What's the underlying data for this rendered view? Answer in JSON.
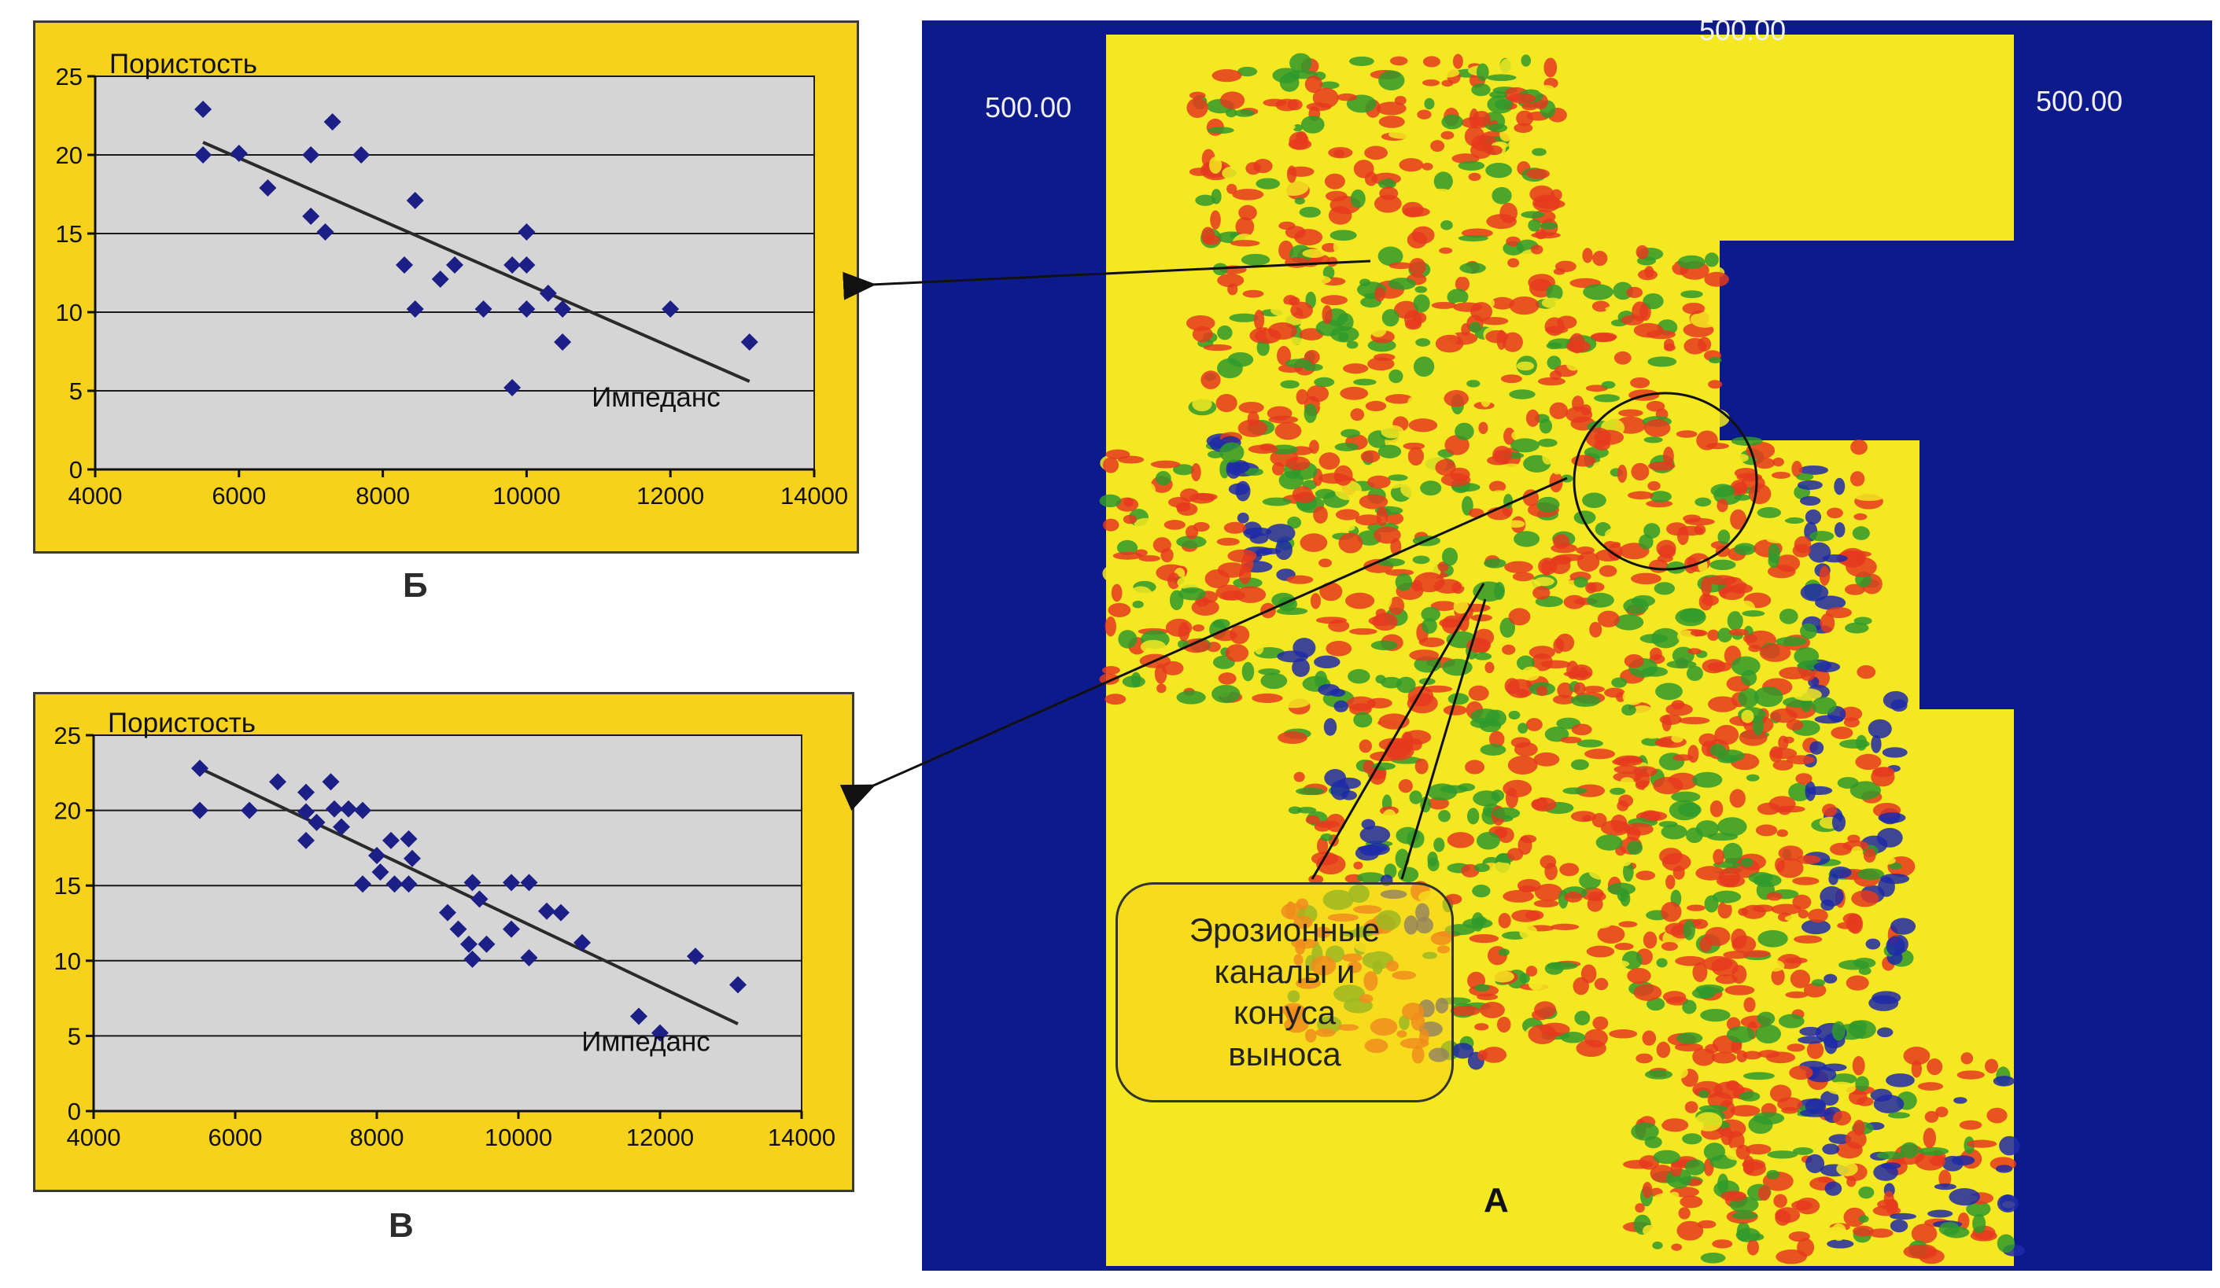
{
  "chart_data": [
    {
      "type": "scatter",
      "panel_label": "Б",
      "ylabel": "Пористость",
      "xlabel": "Импеданс",
      "xlim": [
        4000,
        14000
      ],
      "ylim": [
        0,
        25
      ],
      "xticks": [
        "4000",
        "6000",
        "8000",
        "10000",
        "12000",
        "14000"
      ],
      "yticks": [
        "0",
        "5",
        "10",
        "15",
        "20",
        "25"
      ],
      "grid": "horizontal",
      "points": [
        {
          "x": 5500,
          "y": 22.9
        },
        {
          "x": 5500,
          "y": 20.0
        },
        {
          "x": 6000,
          "y": 20.1
        },
        {
          "x": 6400,
          "y": 17.9
        },
        {
          "x": 7000,
          "y": 20.0
        },
        {
          "x": 7000,
          "y": 16.1
        },
        {
          "x": 7200,
          "y": 15.1
        },
        {
          "x": 7300,
          "y": 22.1
        },
        {
          "x": 7700,
          "y": 20.0
        },
        {
          "x": 8300,
          "y": 13.0
        },
        {
          "x": 8450,
          "y": 17.1
        },
        {
          "x": 8450,
          "y": 10.2
        },
        {
          "x": 8800,
          "y": 12.1
        },
        {
          "x": 9000,
          "y": 13.0
        },
        {
          "x": 9400,
          "y": 10.2
        },
        {
          "x": 9800,
          "y": 13.0
        },
        {
          "x": 9800,
          "y": 5.2
        },
        {
          "x": 10000,
          "y": 15.1
        },
        {
          "x": 10000,
          "y": 13.0
        },
        {
          "x": 10000,
          "y": 10.2
        },
        {
          "x": 10300,
          "y": 11.2
        },
        {
          "x": 10500,
          "y": 10.2
        },
        {
          "x": 10500,
          "y": 8.1
        },
        {
          "x": 12000,
          "y": 10.2
        },
        {
          "x": 13100,
          "y": 8.1
        }
      ],
      "trendline": {
        "x": [
          5500,
          13100
        ],
        "y": [
          20.8,
          5.6
        ]
      }
    },
    {
      "type": "scatter",
      "panel_label": "В",
      "ylabel": "Пористость",
      "xlabel": "Импеданс",
      "xlim": [
        4000,
        14000
      ],
      "ylim": [
        0,
        25
      ],
      "xticks": [
        "4000",
        "6000",
        "8000",
        "10000",
        "12000",
        "14000"
      ],
      "yticks": [
        "0",
        "5",
        "10",
        "15",
        "20",
        "25"
      ],
      "grid": "horizontal",
      "points": [
        {
          "x": 5500,
          "y": 22.8
        },
        {
          "x": 5500,
          "y": 20.0
        },
        {
          "x": 6200,
          "y": 20.0
        },
        {
          "x": 6600,
          "y": 21.9
        },
        {
          "x": 7000,
          "y": 21.2
        },
        {
          "x": 7000,
          "y": 19.9
        },
        {
          "x": 7000,
          "y": 18.0
        },
        {
          "x": 7150,
          "y": 19.2
        },
        {
          "x": 7350,
          "y": 21.9
        },
        {
          "x": 7400,
          "y": 20.1
        },
        {
          "x": 7500,
          "y": 18.9
        },
        {
          "x": 7600,
          "y": 20.1
        },
        {
          "x": 7800,
          "y": 20.0
        },
        {
          "x": 7800,
          "y": 15.1
        },
        {
          "x": 8000,
          "y": 17.0
        },
        {
          "x": 8050,
          "y": 15.9
        },
        {
          "x": 8200,
          "y": 18.0
        },
        {
          "x": 8250,
          "y": 15.1
        },
        {
          "x": 8450,
          "y": 18.1
        },
        {
          "x": 8450,
          "y": 15.1
        },
        {
          "x": 8500,
          "y": 16.8
        },
        {
          "x": 9000,
          "y": 13.2
        },
        {
          "x": 9150,
          "y": 12.1
        },
        {
          "x": 9300,
          "y": 11.1
        },
        {
          "x": 9350,
          "y": 15.2
        },
        {
          "x": 9350,
          "y": 10.1
        },
        {
          "x": 9450,
          "y": 14.1
        },
        {
          "x": 9550,
          "y": 11.1
        },
        {
          "x": 9900,
          "y": 15.2
        },
        {
          "x": 9900,
          "y": 12.1
        },
        {
          "x": 10150,
          "y": 15.2
        },
        {
          "x": 10150,
          "y": 10.2
        },
        {
          "x": 10400,
          "y": 13.3
        },
        {
          "x": 10600,
          "y": 13.2
        },
        {
          "x": 10900,
          "y": 11.2
        },
        {
          "x": 11700,
          "y": 6.3
        },
        {
          "x": 12000,
          "y": 5.2
        },
        {
          "x": 12500,
          "y": 10.3
        },
        {
          "x": 13100,
          "y": 8.4
        }
      ],
      "trendline": {
        "x": [
          5500,
          13100
        ],
        "y": [
          22.8,
          5.8
        ]
      }
    }
  ],
  "map": {
    "panel_label": "А",
    "coords": [
      "500.00",
      "500.00",
      "500.00"
    ],
    "callout": "Эрозионные\nканалы и\nконуса\nвыноса"
  },
  "colors": {
    "panel_bg": "#f7d21c",
    "plot_bg": "#d5d5d5",
    "marker": "#1c1f86",
    "map_frame": "#0d1a8c",
    "map_yellow": "#f3e821",
    "map_red": "#e53a1e",
    "map_green": "#2f9a2c",
    "map_blue": "#1e2aa8"
  }
}
